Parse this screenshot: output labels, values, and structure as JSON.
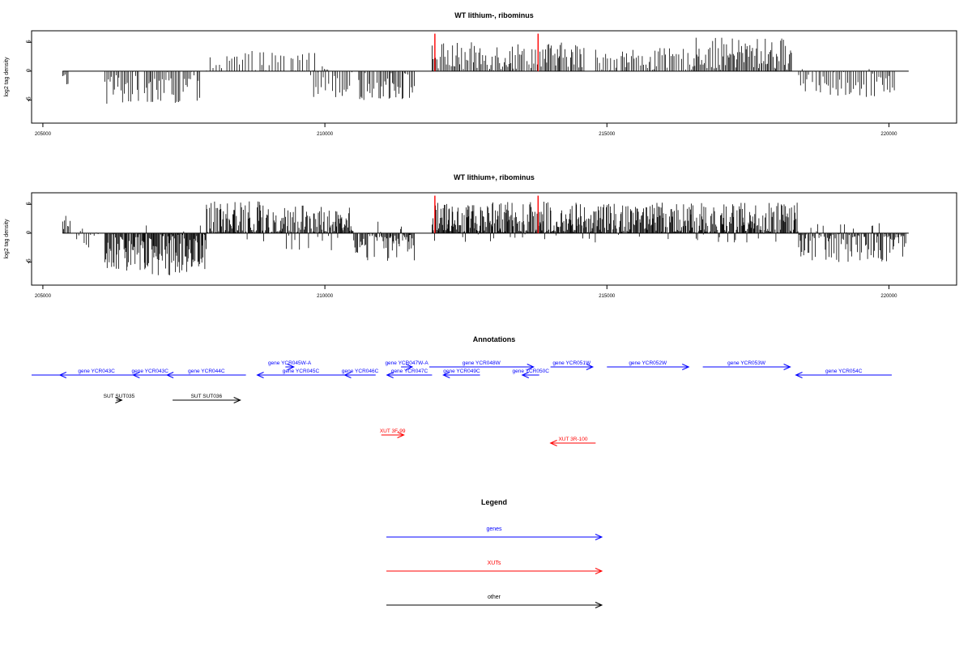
{
  "colors": {
    "axis": "#000000",
    "genes": "#0000ff",
    "xuts": "#ff0000",
    "other": "#000000",
    "highlight": "#ff0000"
  },
  "panel1": {
    "title": "WT lithium-, ribominus",
    "ylabel": "log2 tag density"
  },
  "panel2": {
    "title": "WT lithium+, ribominus",
    "ylabel": "log2 tag density"
  },
  "annotations": {
    "title": "Annotations",
    "genes": [
      {
        "label": "gene YCR043C",
        "start": 205300,
        "end": 206600,
        "strand": "-"
      },
      {
        "label": "gene YCR043C",
        "start": 206600,
        "end": 207200,
        "strand": "-"
      },
      {
        "label": "gene YCR044C",
        "start": 207200,
        "end": 208600,
        "strand": "-"
      },
      {
        "label": "gene YCR045W-A",
        "start": 209300,
        "end": 209450,
        "strand": "+"
      },
      {
        "label": "gene YCR045C",
        "start": 208800,
        "end": 210350,
        "strand": "-"
      },
      {
        "label": "gene YCR046C",
        "start": 210350,
        "end": 210900,
        "strand": "-"
      },
      {
        "label": "gene YCR047W-A",
        "start": 211350,
        "end": 211550,
        "strand": "+"
      },
      {
        "label": "gene YCR047C",
        "start": 211100,
        "end": 211900,
        "strand": "-"
      },
      {
        "label": "gene YCR048W",
        "start": 211850,
        "end": 213700,
        "strand": "+"
      },
      {
        "label": "gene YCR049C",
        "start": 212100,
        "end": 212750,
        "strand": "-"
      },
      {
        "label": "gene YCR050C",
        "start": 213500,
        "end": 213800,
        "strand": "-"
      },
      {
        "label": "gene YCR051W",
        "start": 214000,
        "end": 214750,
        "strand": "+"
      },
      {
        "label": "gene YCR052W",
        "start": 215000,
        "end": 216450,
        "strand": "+"
      },
      {
        "label": "gene YCR053W",
        "start": 216700,
        "end": 218250,
        "strand": "+"
      },
      {
        "label": "gene YCR054C",
        "start": 218350,
        "end": 220050,
        "strand": "-"
      }
    ],
    "other": [
      {
        "label": "SUT SUT035",
        "start": 206300,
        "end": 206400,
        "strand": "+"
      },
      {
        "label": "SUT SUT036",
        "start": 207300,
        "end": 208500,
        "strand": "+"
      }
    ],
    "xuts": [
      {
        "label": "XUT 3F-99",
        "start": 211000,
        "end": 211400,
        "strand": "+"
      },
      {
        "label": "XUT 3R-100",
        "start": 214000,
        "end": 214800,
        "strand": "-"
      }
    ]
  },
  "legend": {
    "title": "Legend",
    "items": [
      {
        "label": "genes",
        "color_key": "genes"
      },
      {
        "label": "XUTs",
        "color_key": "xuts"
      },
      {
        "label": "other",
        "color_key": "other"
      }
    ]
  },
  "chart_data": [
    {
      "type": "bar",
      "title": "WT lithium-, ribominus",
      "xlabel": "",
      "ylabel": "log2 tag density",
      "xlim": [
        204800,
        221200
      ],
      "ylim": [
        -9,
        7
      ],
      "xticks": [
        205000,
        210000,
        215000,
        220000
      ],
      "yticks": [
        -5,
        0,
        5
      ],
      "highlights": [
        {
          "x": 211950,
          "y": 6.5
        },
        {
          "x": 213780,
          "y": 6.5
        }
      ],
      "segments": [
        {
          "from": 205350,
          "to": 205450,
          "mean": -1.5,
          "amp": 1.5,
          "step": 30
        },
        {
          "from": 206100,
          "to": 206700,
          "mean": -3.0,
          "amp": 3.0,
          "step": 28
        },
        {
          "from": 206800,
          "to": 207800,
          "mean": -2.5,
          "amp": 3.0,
          "step": 26
        },
        {
          "from": 207900,
          "to": 209300,
          "mean": 1.5,
          "amp": 2.0,
          "step": 45
        },
        {
          "from": 209400,
          "to": 210100,
          "mean": 1.5,
          "amp": 2.5,
          "step": 40
        },
        {
          "from": 209800,
          "to": 210500,
          "mean": -2.0,
          "amp": 2.5,
          "step": 30
        },
        {
          "from": 210600,
          "to": 211600,
          "mean": -2.5,
          "amp": 2.5,
          "step": 26
        },
        {
          "from": 211900,
          "to": 214600,
          "mean": 2.5,
          "amp": 2.5,
          "step": 24
        },
        {
          "from": 214800,
          "to": 216500,
          "mean": 2.0,
          "amp": 2.0,
          "step": 30
        },
        {
          "from": 216500,
          "to": 218300,
          "mean": 3.0,
          "amp": 2.8,
          "step": 22
        },
        {
          "from": 218400,
          "to": 220100,
          "mean": -2.0,
          "amp": 2.5,
          "step": 35
        }
      ]
    },
    {
      "type": "bar",
      "title": "WT lithium+, ribominus",
      "xlabel": "",
      "ylabel": "log2 tag density",
      "xlim": [
        204800,
        221200
      ],
      "ylim": [
        -9,
        7
      ],
      "xticks": [
        205000,
        210000,
        215000,
        220000
      ],
      "yticks": [
        -5,
        0,
        5
      ],
      "highlights": [
        {
          "x": 211950,
          "y": 6.5
        },
        {
          "x": 213780,
          "y": 6.5
        }
      ],
      "segments": [
        {
          "from": 205350,
          "to": 205500,
          "mean": 0.5,
          "amp": 3.0,
          "step": 25
        },
        {
          "from": 205600,
          "to": 206000,
          "mean": -0.5,
          "amp": 2.0,
          "step": 30
        },
        {
          "from": 206100,
          "to": 206800,
          "mean": -3.5,
          "amp": 3.5,
          "step": 14
        },
        {
          "from": 206800,
          "to": 207900,
          "mean": -3.0,
          "amp": 4.5,
          "step": 12
        },
        {
          "from": 207900,
          "to": 209300,
          "mean": 2.0,
          "amp": 3.5,
          "step": 14
        },
        {
          "from": 209300,
          "to": 210500,
          "mean": 1.0,
          "amp": 4.0,
          "step": 14
        },
        {
          "from": 210500,
          "to": 211600,
          "mean": -1.5,
          "amp": 3.5,
          "step": 16
        },
        {
          "from": 211900,
          "to": 214600,
          "mean": 2.0,
          "amp": 3.5,
          "step": 12
        },
        {
          "from": 214600,
          "to": 218400,
          "mean": 1.8,
          "amp": 3.5,
          "step": 13
        },
        {
          "from": 218400,
          "to": 220300,
          "mean": -1.5,
          "amp": 3.5,
          "step": 18
        }
      ]
    }
  ]
}
